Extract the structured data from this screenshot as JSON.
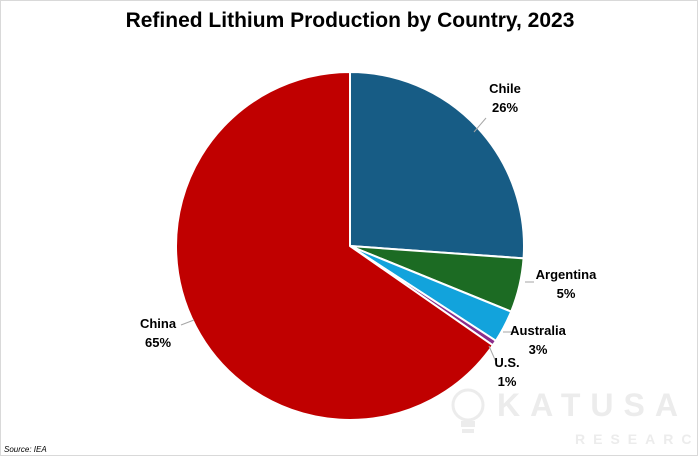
{
  "chart_data": {
    "type": "pie",
    "title": "Refined Lithium Production by Country, 2023",
    "start_angle_deg": 0,
    "direction": "clockwise",
    "slices": [
      {
        "label": "Chile",
        "value": 26,
        "value_label": "26%",
        "color": "#175c85"
      },
      {
        "label": "Argentina",
        "value": 5,
        "value_label": "5%",
        "color": "#1c6b23"
      },
      {
        "label": "Australia",
        "value": 3,
        "value_label": "3%",
        "color": "#12a3dc"
      },
      {
        "label": "U.S.",
        "value": 0.5,
        "value_label": "1%",
        "color": "#8b2d8b"
      },
      {
        "label": "China",
        "value": 65,
        "value_label": "65%",
        "color": "#c00000"
      }
    ],
    "source": "Source: IEA"
  },
  "watermark": {
    "name": "KATUSA",
    "sub": "RESEARCH"
  }
}
